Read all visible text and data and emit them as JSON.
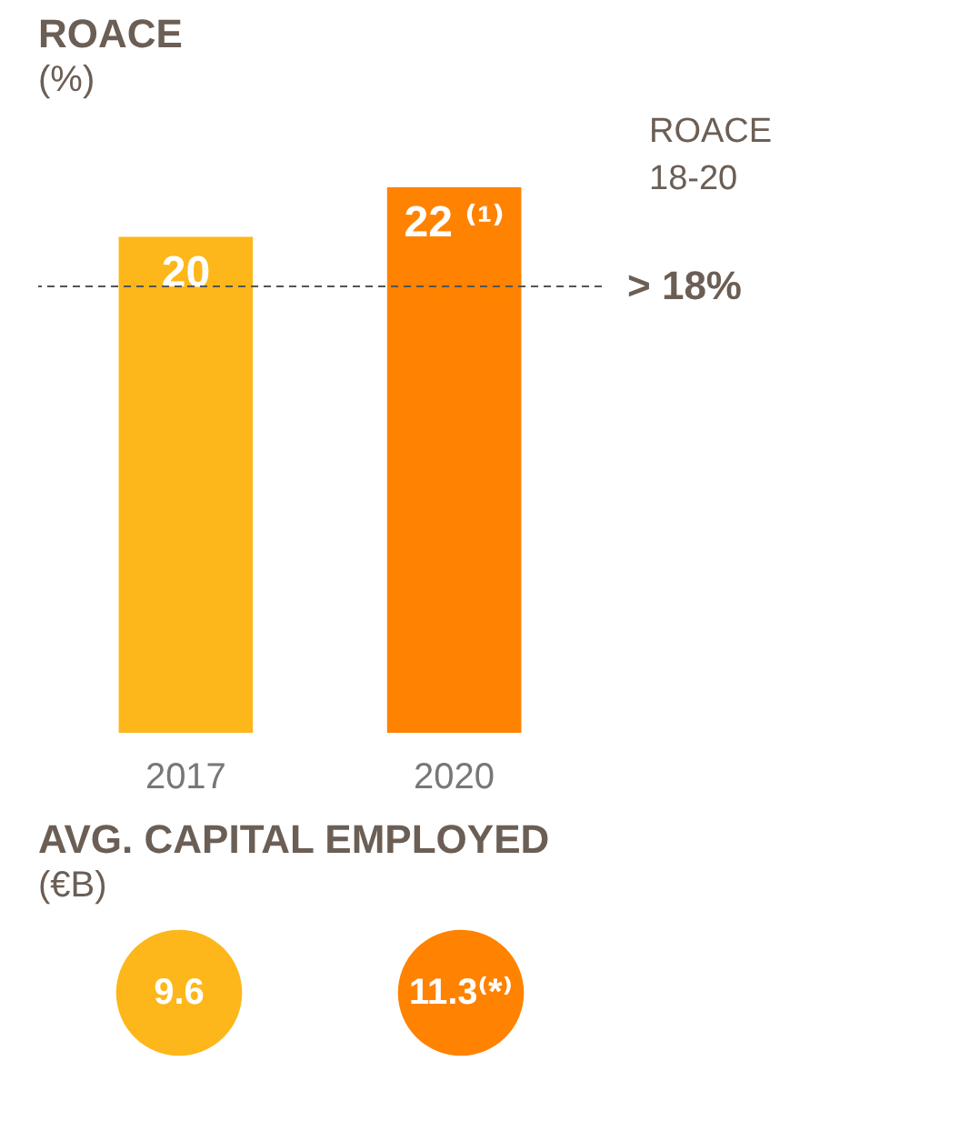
{
  "chart_data": [
    {
      "type": "bar",
      "title": "ROACE",
      "subtitle": "(%)",
      "categories": [
        "2017",
        "2020"
      ],
      "values": [
        20,
        22
      ],
      "colors": [
        "#fdb71a",
        "#ff8200"
      ],
      "value_labels": [
        "20",
        "22 ⁽¹⁾"
      ],
      "ref_lines": [
        {
          "axis": "y",
          "value": 18,
          "label": "> 18%",
          "color": "#555555",
          "line_style": "dashed"
        }
      ],
      "annotations": [
        "ROACE 18-20"
      ]
    },
    {
      "type": "other",
      "title": "AVG. CAPITAL EMPLOYED",
      "subtitle": "(€B)",
      "values": [
        9.6,
        11.3
      ],
      "value_labels": [
        "9.6",
        "11.3⁽*⁾"
      ],
      "colors": [
        "#fdb71a",
        "#ff8200"
      ]
    }
  ]
}
